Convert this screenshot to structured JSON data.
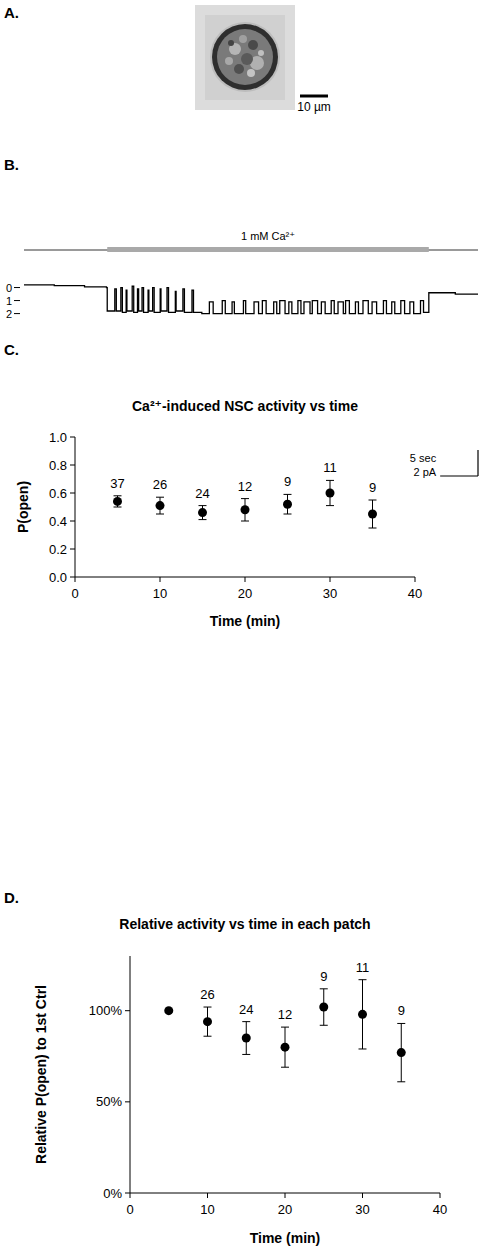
{
  "chart_data": [
    {
      "type": "image",
      "panel": "A.",
      "annotations": [
        "10 µm"
      ]
    },
    {
      "type": "line",
      "panel": "B.",
      "line_style": "step",
      "color": "#000000",
      "tick_labels": "y",
      "x": [
        0,
        4,
        8,
        10.9,
        11,
        12,
        12.2,
        12.8,
        13,
        13.5,
        13.6,
        14.3,
        14.5,
        15,
        15.15,
        15.6,
        15.8,
        16.4,
        16.5,
        17,
        17.2,
        18,
        18.1,
        18.9,
        19.1,
        20,
        20.1,
        21,
        21.2,
        22.2,
        22.4,
        23.5,
        24.5,
        25,
        26.2,
        26.6,
        27.5,
        27.8,
        29,
        29.3,
        30.4,
        31,
        31.5,
        32,
        33,
        33.4,
        33.8,
        34.5,
        35,
        35.4,
        36.2,
        36.6,
        37,
        37.8,
        38.1,
        38.8,
        39.3,
        39.8,
        40.6,
        41,
        41.5,
        42.2,
        42.5,
        43,
        43.8,
        44.2,
        44.8,
        45.5,
        46,
        46.6,
        47.5,
        47.9,
        48.6,
        49,
        49.8,
        50.3,
        51,
        51.5,
        52.4,
        52.8,
        53.5,
        57,
        60
      ],
      "values": [
        -0.2,
        -0.15,
        -0.05,
        0,
        1.8,
        0.1,
        1.8,
        0,
        1.9,
        0.2,
        1.8,
        -0.1,
        1.9,
        0.1,
        1.8,
        0,
        1.9,
        0.2,
        1.8,
        0,
        1.9,
        0.1,
        1.8,
        0,
        1.9,
        0.3,
        1.8,
        0.1,
        1.9,
        0.2,
        1.9,
        2,
        1.1,
        2,
        1,
        2,
        1.1,
        2,
        1,
        2,
        1.1,
        2,
        1,
        2,
        1.1,
        2,
        1,
        2,
        1.1,
        2,
        1,
        2,
        1.1,
        2,
        1,
        2,
        1.1,
        2,
        1,
        2,
        1.1,
        2,
        1,
        2,
        1.1,
        2,
        1,
        2,
        1.1,
        2,
        1,
        2,
        1.1,
        2,
        1,
        2,
        1.1,
        2,
        1,
        1.9,
        0.4,
        0.5,
        0.5
      ],
      "xlim": [
        0,
        60
      ],
      "ylim": [
        -1.5,
        2.8
      ],
      "yticks": [
        0,
        1,
        2
      ],
      "annotations": [
        {
          "text": "1 mM Ca²⁺",
          "x": [
            11,
            53.5
          ]
        }
      ],
      "scale_bars": [
        {
          "value": 5,
          "label": "5 sec",
          "axis": "x"
        },
        {
          "value": 2,
          "label": "2 pA",
          "axis": "y"
        }
      ]
    },
    {
      "type": "scatter",
      "panel": "C.",
      "title": "Ca²⁺-induced NSC activity vs time",
      "x_label": "Time (min)",
      "y_label": "P(open)",
      "marker": "circle",
      "color": "#000000",
      "grid": false,
      "x": [
        5,
        10,
        15,
        20,
        25,
        30,
        35
      ],
      "values": [
        0.54,
        0.51,
        0.46,
        0.48,
        0.52,
        0.6,
        0.45
      ],
      "errors": [
        0.04,
        0.06,
        0.05,
        0.08,
        0.07,
        0.09,
        0.1
      ],
      "n": [
        37,
        26,
        24,
        12,
        9,
        11,
        9
      ],
      "xlim": [
        0,
        40
      ],
      "xticks": [
        0,
        10,
        20,
        30,
        40
      ],
      "ylim": [
        0,
        1
      ],
      "yticks": [
        {
          "value": 0,
          "label": "0.0"
        },
        {
          "value": 0.2,
          "label": "0.2"
        },
        {
          "value": 0.4,
          "label": "0.4"
        },
        {
          "value": 0.6,
          "label": "0.6"
        },
        {
          "value": 0.8,
          "label": "0.8"
        },
        {
          "value": 1,
          "label": "1.0"
        }
      ]
    },
    {
      "type": "scatter",
      "panel": "D.",
      "title": "Relative activity vs time in each patch",
      "x_label": "Time (min)",
      "y_label": "Relative P(open) to 1st Ctrl",
      "marker": "circle",
      "color": "#000000",
      "grid": false,
      "x": [
        5,
        10,
        15,
        20,
        25,
        30,
        35
      ],
      "values": [
        100,
        94,
        85,
        80,
        102,
        98,
        77
      ],
      "errors": [
        null,
        8,
        9,
        11,
        10,
        19,
        16
      ],
      "n": [
        null,
        26,
        24,
        12,
        9,
        11,
        9
      ],
      "xlim": [
        0,
        40
      ],
      "xticks": [
        0,
        10,
        20,
        30,
        40
      ],
      "ylim": [
        0,
        130
      ],
      "yticks": [
        {
          "value": 0,
          "label": "0%"
        },
        {
          "value": 50,
          "label": "50%"
        },
        {
          "value": 100,
          "label": "100%"
        }
      ]
    }
  ]
}
